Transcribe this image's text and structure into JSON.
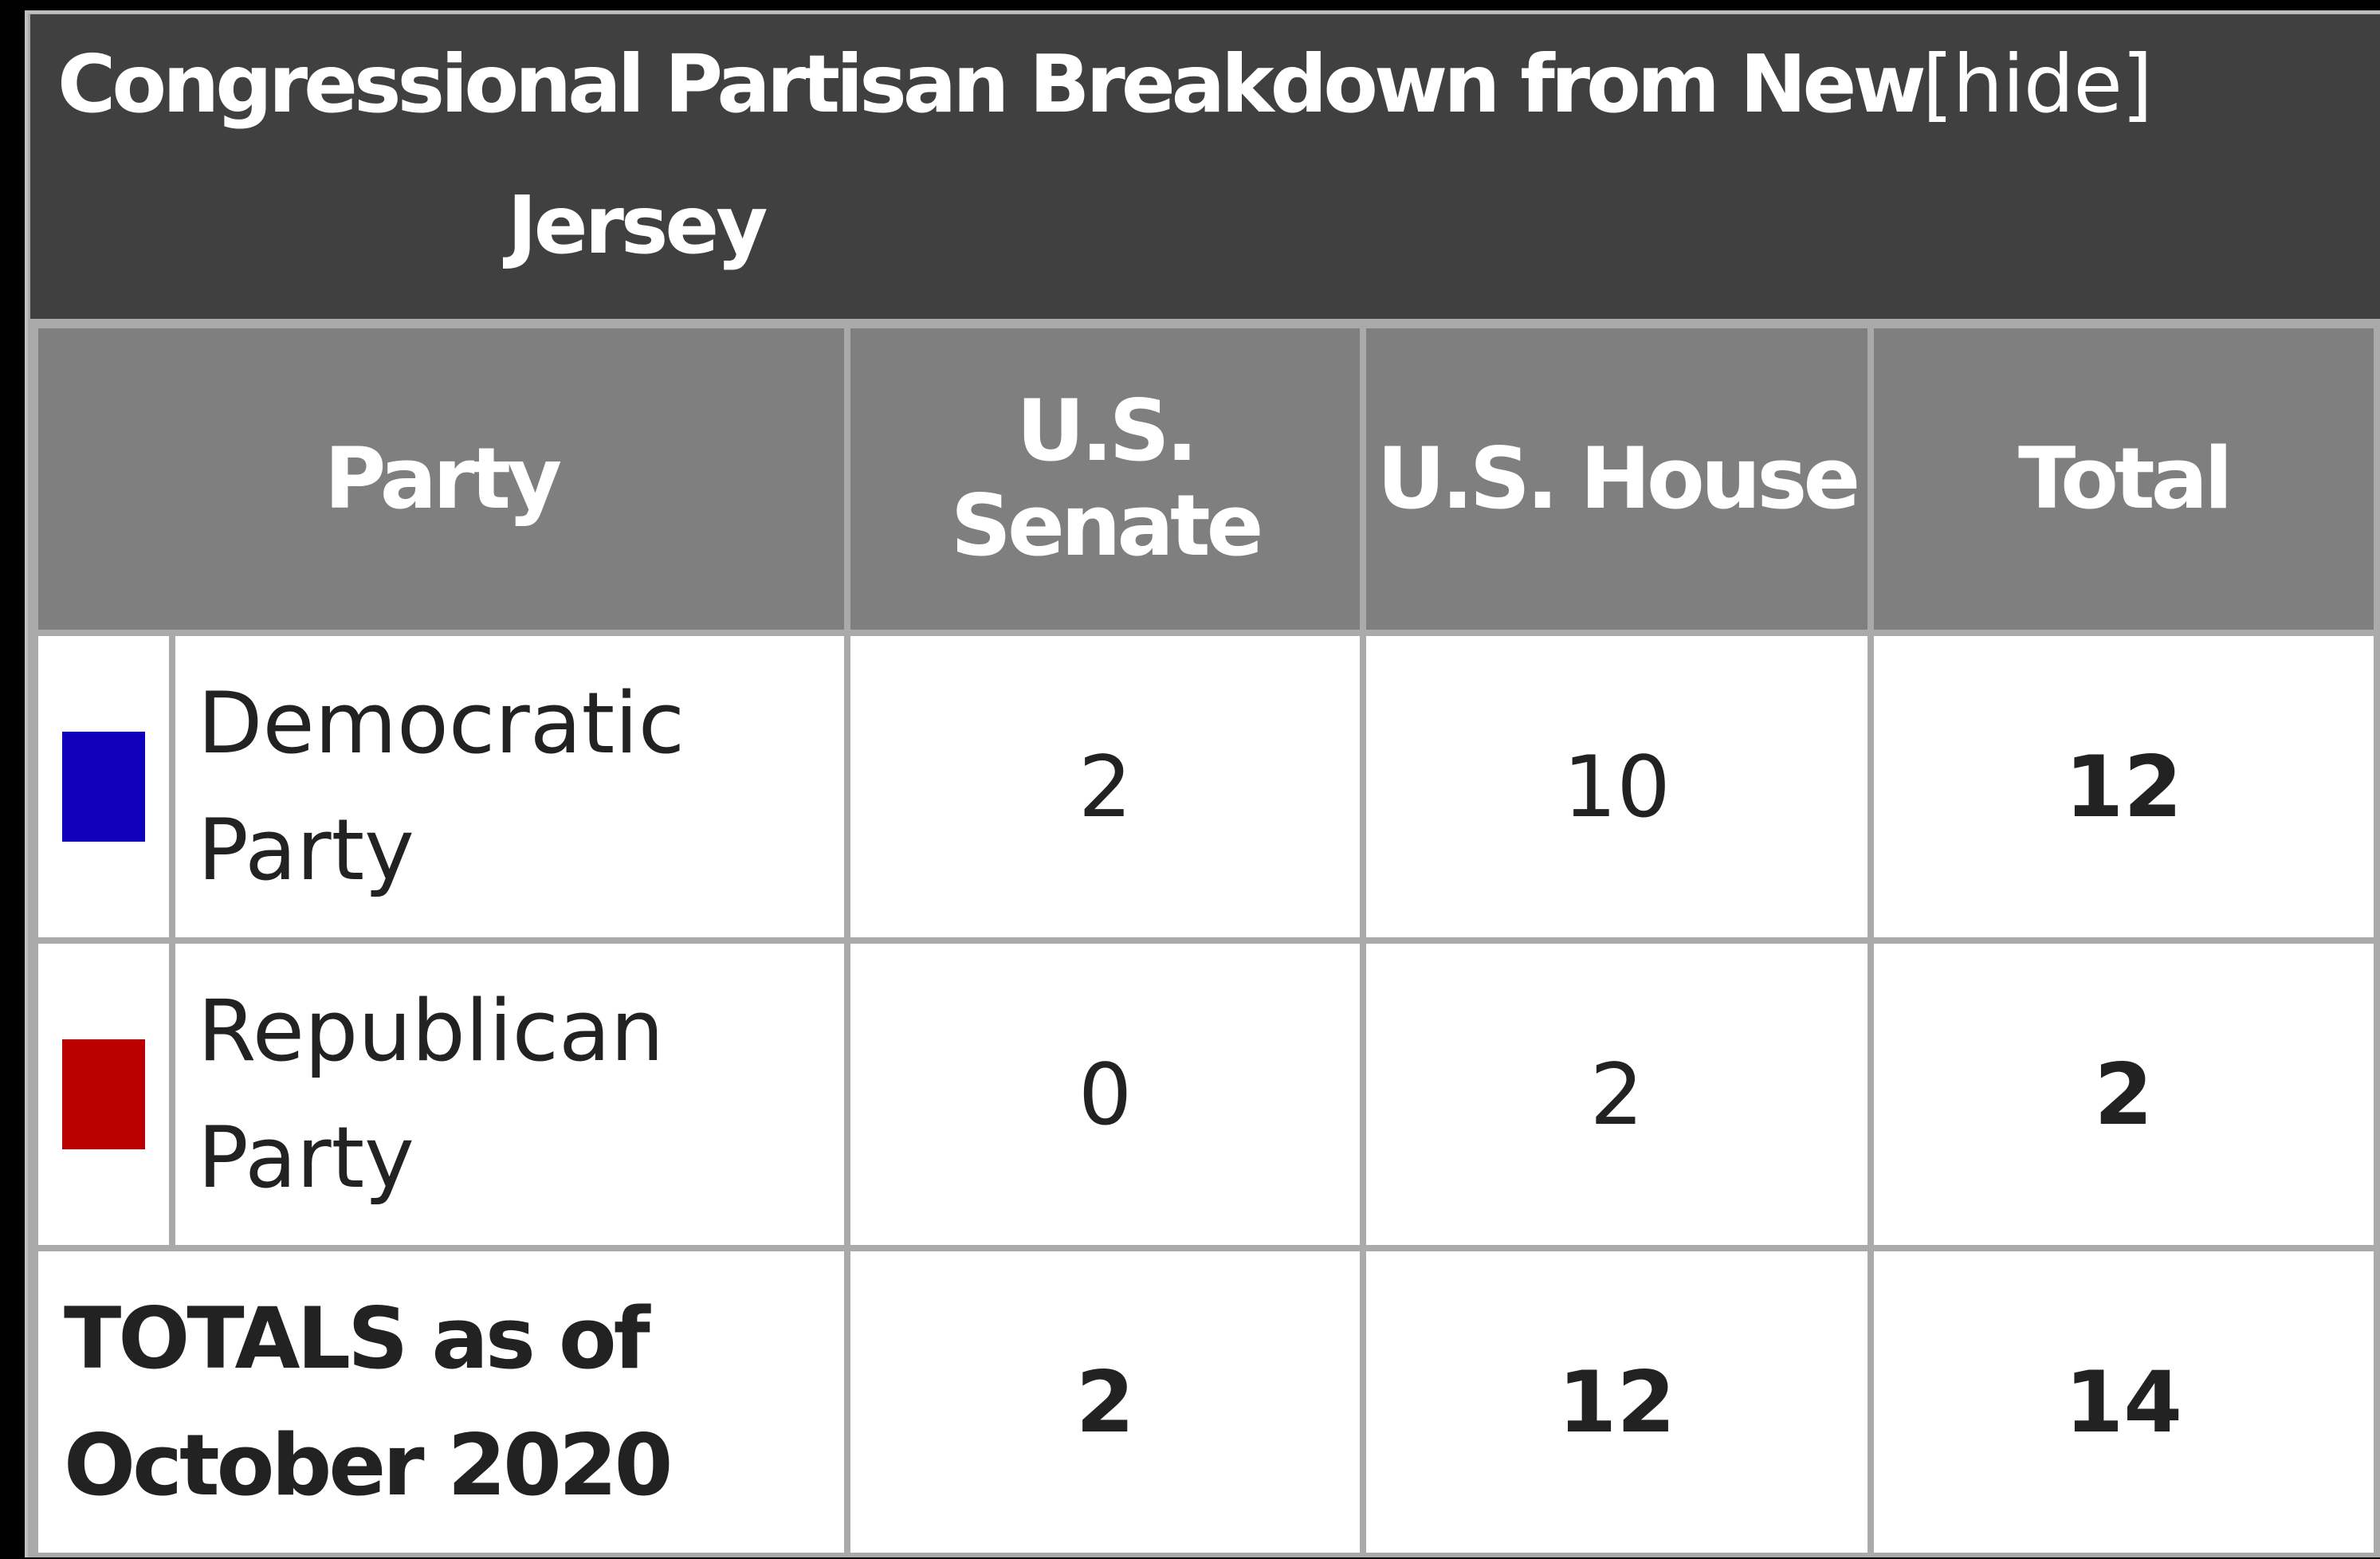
{
  "title": {
    "line1": "Congressional Partisan Breakdown from New",
    "line2": "Jersey",
    "hide_label": "[hide]"
  },
  "headers": {
    "party": "Party",
    "senate": "U.S. Senate",
    "house": "U.S. House",
    "total": "Total"
  },
  "rows": [
    {
      "party_label": "Democratic Party",
      "color": "#1100bb",
      "senate": "2",
      "house": "10",
      "total": "12"
    },
    {
      "party_label": "Republican Party",
      "color": "#bb0000",
      "senate": "0",
      "house": "2",
      "total": "2"
    }
  ],
  "totals": {
    "label": "TOTALS as of October 2020",
    "senate": "2",
    "house": "12",
    "total": "14"
  },
  "colors": {
    "title_background": "#404040",
    "header_background": "#7f7f7f",
    "cell_background": "#ffffff",
    "border": "#aaaaaa"
  }
}
